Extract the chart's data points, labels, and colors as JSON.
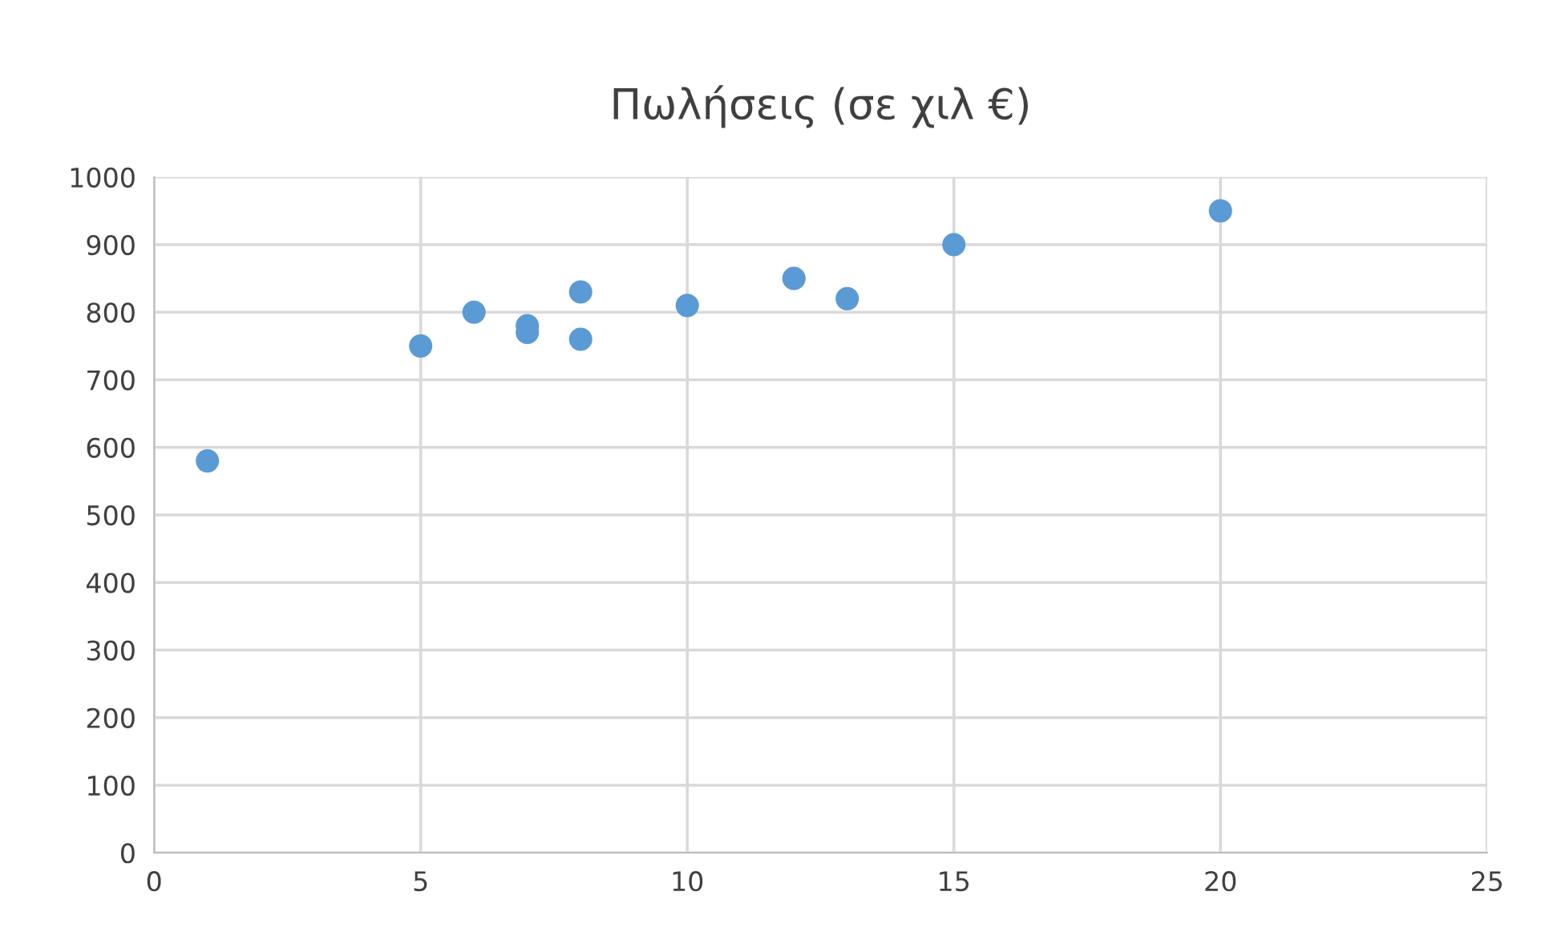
{
  "chart_data": {
    "type": "scatter",
    "title": "Πωλήσεις (σε χιλ €)",
    "x": [
      1,
      5,
      6,
      7,
      7,
      8,
      8,
      10,
      12,
      13,
      15,
      20
    ],
    "values": [
      580,
      750,
      800,
      780,
      770,
      830,
      760,
      810,
      850,
      820,
      900,
      950
    ],
    "color": "#5b9bd5",
    "marker": "circle",
    "xlim": [
      0,
      25
    ],
    "xticks": [
      0,
      5,
      10,
      15,
      20,
      25
    ],
    "ylim": [
      0,
      1000
    ],
    "yticks": [
      0,
      100,
      200,
      300,
      400,
      500,
      600,
      700,
      800,
      900,
      1000
    ],
    "grid": true
  }
}
